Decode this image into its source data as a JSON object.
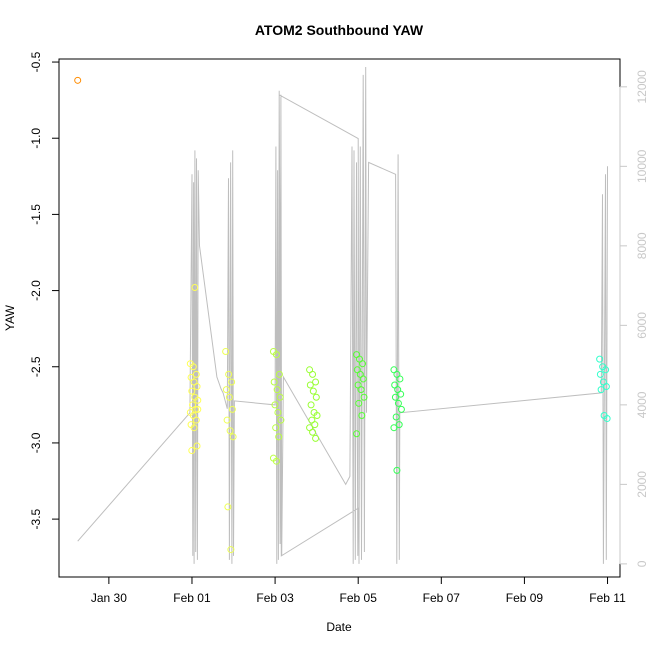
{
  "chart_data": {
    "type": "scatter",
    "title": "ATOM2 Southbound YAW",
    "xlabel": "Date",
    "ylabel": "YAW",
    "x_ticks": [
      "Jan 30",
      "Feb 01",
      "Feb 03",
      "Feb 05",
      "Feb 07",
      "Feb 09",
      "Feb 11"
    ],
    "x_tick_positions_days": [
      1.0,
      3.0,
      5.0,
      7.0,
      9.0,
      11.0,
      13.0
    ],
    "xlim_days": [
      -0.2,
      13.3
    ],
    "y_ticks": [
      "-0.5",
      "-1.0",
      "-1.5",
      "-2.0",
      "-2.5",
      "-3.0",
      "-3.5"
    ],
    "ylim": [
      -3.88,
      -0.48
    ],
    "y2_ticks": [
      "0",
      "2000",
      "4000",
      "6000",
      "8000",
      "10000",
      "12000"
    ],
    "y2lim": [
      -330,
      12700
    ],
    "grid": false,
    "scatter_series": {
      "color": "#ff8c00",
      "points": [
        [
          0.25,
          -0.62
        ]
      ]
    },
    "line_series_color": "#bebebe",
    "scatter_clusters": [
      {
        "day": 3.05,
        "color": "#ffff55",
        "y": [
          -2.48,
          -2.5,
          -2.55,
          -2.57,
          -2.6,
          -2.63,
          -2.66,
          -2.7,
          -2.72,
          -2.75,
          -2.78,
          -2.8,
          -2.82,
          -2.85,
          -2.88,
          -2.9,
          -3.02,
          -3.05,
          -1.98,
          -2.78
        ]
      },
      {
        "day": 3.9,
        "color": "#eeff55",
        "y": [
          -2.4,
          -2.55,
          -2.6,
          -2.65,
          -2.7,
          -2.78,
          -2.85,
          -2.92,
          -2.96,
          -3.42,
          -3.7
        ]
      },
      {
        "day": 5.05,
        "color": "#bbff44",
        "y": [
          -2.4,
          -2.42,
          -2.55,
          -2.6,
          -2.65,
          -2.7,
          -2.75,
          -2.8,
          -2.85,
          -2.9,
          -2.96,
          -3.1,
          -3.12
        ]
      },
      {
        "day": 5.92,
        "color": "#99ff33",
        "y": [
          -2.52,
          -2.55,
          -2.6,
          -2.62,
          -2.66,
          -2.7,
          -2.75,
          -2.8,
          -2.82,
          -2.85,
          -2.88,
          -2.9,
          -2.93,
          -2.97
        ]
      },
      {
        "day": 7.05,
        "color": "#55ff33",
        "y": [
          -2.42,
          -2.45,
          -2.48,
          -2.52,
          -2.55,
          -2.58,
          -2.62,
          -2.65,
          -2.7,
          -2.74,
          -2.82,
          -2.94
        ]
      },
      {
        "day": 7.95,
        "color": "#33ff55",
        "y": [
          -2.52,
          -2.55,
          -2.58,
          -2.62,
          -2.65,
          -2.68,
          -2.7,
          -2.74,
          -2.78,
          -2.83,
          -2.88,
          -2.9,
          -3.18
        ]
      },
      {
        "day": 12.9,
        "color": "#33ffcc",
        "y": [
          -2.45,
          -2.5,
          -2.52,
          -2.55,
          -2.6,
          -2.63,
          -2.65,
          -2.82,
          -2.84
        ]
      }
    ],
    "line_data": [
      [
        0.25,
        570
      ],
      [
        2.95,
        3800
      ],
      [
        3.0,
        9800
      ],
      [
        3.02,
        200
      ],
      [
        3.04,
        9600
      ],
      [
        3.05,
        0
      ],
      [
        3.07,
        10400
      ],
      [
        3.09,
        300
      ],
      [
        3.11,
        10200
      ],
      [
        3.13,
        100
      ],
      [
        3.15,
        9900
      ],
      [
        3.18,
        8000
      ],
      [
        3.6,
        4700
      ],
      [
        3.7,
        4400
      ],
      [
        3.75,
        4300
      ],
      [
        3.85,
        3900
      ],
      [
        3.88,
        9700
      ],
      [
        3.9,
        100
      ],
      [
        3.93,
        10100
      ],
      [
        3.96,
        0
      ],
      [
        3.98,
        10400
      ],
      [
        4.0,
        200
      ],
      [
        4.02,
        4100
      ],
      [
        5.0,
        4000
      ],
      [
        5.02,
        10500
      ],
      [
        5.04,
        0
      ],
      [
        5.06,
        9900
      ],
      [
        5.08,
        100
      ],
      [
        5.1,
        11900
      ],
      [
        5.12,
        500
      ],
      [
        5.14,
        11800
      ],
      [
        5.16,
        200
      ],
      [
        5.2,
        4700
      ],
      [
        6.7,
        2000
      ],
      [
        6.8,
        2200
      ],
      [
        6.85,
        10500
      ],
      [
        6.88,
        0
      ],
      [
        6.9,
        10400
      ],
      [
        6.93,
        100
      ],
      [
        6.96,
        10100
      ],
      [
        6.99,
        200
      ],
      [
        7.0,
        1400
      ],
      [
        5.15,
        200
      ],
      [
        5.1,
        11800
      ],
      [
        7.0,
        10700
      ],
      [
        7.02,
        0
      ],
      [
        7.05,
        10500
      ],
      [
        7.08,
        100
      ],
      [
        7.12,
        12300
      ],
      [
        7.15,
        300
      ],
      [
        7.18,
        12500
      ],
      [
        7.2,
        3800
      ],
      [
        7.25,
        10100
      ],
      [
        7.9,
        9800
      ],
      [
        7.93,
        0
      ],
      [
        7.96,
        10300
      ],
      [
        7.99,
        100
      ],
      [
        8.0,
        3800
      ],
      [
        12.85,
        4300
      ],
      [
        12.88,
        9300
      ],
      [
        12.9,
        0
      ],
      [
        12.95,
        9800
      ],
      [
        12.97,
        100
      ],
      [
        13.0,
        10000
      ]
    ]
  }
}
